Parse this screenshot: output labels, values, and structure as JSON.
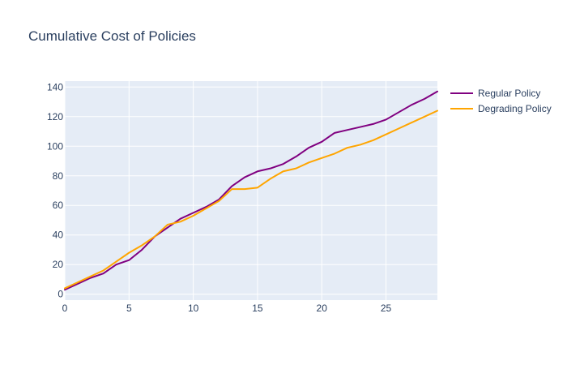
{
  "chart_data": {
    "type": "line",
    "title": "Cumulative Cost of Policies",
    "xlabel": "",
    "ylabel": "",
    "xlim": [
      0,
      29
    ],
    "ylim": [
      -4,
      144
    ],
    "x_ticks": [
      0,
      5,
      10,
      15,
      20,
      25
    ],
    "y_ticks": [
      0,
      20,
      40,
      60,
      80,
      100,
      120,
      140
    ],
    "grid": true,
    "legend_position": "top-right",
    "x": [
      0,
      1,
      2,
      3,
      4,
      5,
      6,
      7,
      8,
      9,
      10,
      11,
      12,
      13,
      14,
      15,
      16,
      17,
      18,
      19,
      20,
      21,
      22,
      23,
      24,
      25,
      26,
      27,
      28,
      29
    ],
    "series": [
      {
        "name": "Regular Policy",
        "color": "#800080",
        "values": [
          3,
          7,
          11,
          14,
          20,
          23,
          30,
          39,
          45,
          51,
          55,
          59,
          64,
          73,
          79,
          83,
          85,
          88,
          93,
          99,
          103,
          109,
          111,
          113,
          115,
          118,
          123,
          128,
          132,
          137
        ]
      },
      {
        "name": "Degrading Policy",
        "color": "#ffa500",
        "values": [
          4,
          8,
          12,
          16,
          22,
          28,
          33,
          39,
          47,
          49,
          53,
          58,
          63,
          71,
          71,
          72,
          78,
          83,
          85,
          89,
          92,
          95,
          99,
          101,
          104,
          108,
          112,
          116,
          120,
          124
        ]
      }
    ]
  }
}
